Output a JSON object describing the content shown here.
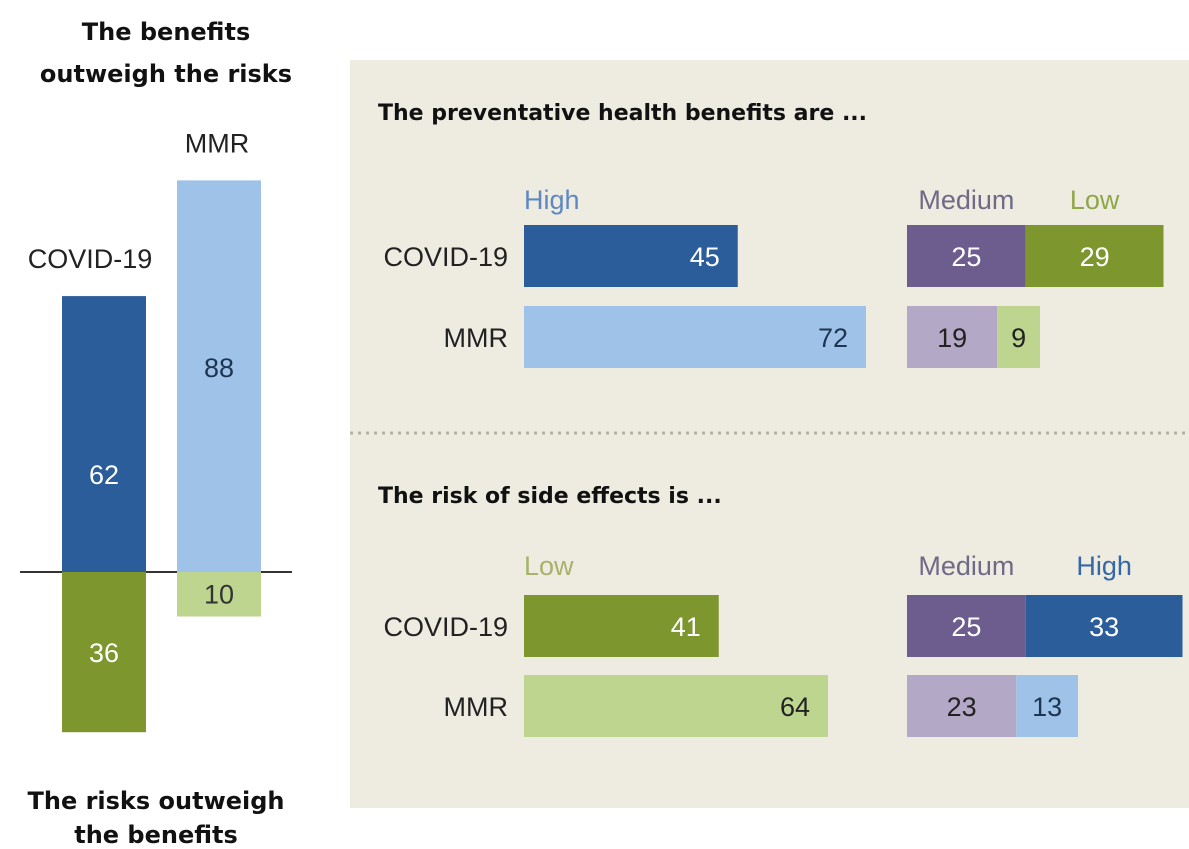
{
  "chart_data": [
    {
      "type": "bar",
      "top_label": [
        "The benefits",
        "outweigh the risks"
      ],
      "bottom_label": [
        "The risks outweigh",
        "the benefits"
      ],
      "categories": [
        "COVID-19",
        "MMR"
      ],
      "series": [
        {
          "name": "The benefits outweigh the risks",
          "values": [
            62,
            88
          ]
        },
        {
          "name": "The risks outweigh the benefits",
          "values": [
            36,
            10
          ]
        }
      ]
    },
    {
      "type": "bar",
      "title": "The preventative health benefits are ...",
      "categories": [
        "COVID-19",
        "MMR"
      ],
      "series": [
        {
          "name": "High",
          "values": [
            45,
            72
          ]
        },
        {
          "name": "Medium",
          "values": [
            25,
            19
          ]
        },
        {
          "name": "Low",
          "values": [
            29,
            9
          ]
        }
      ]
    },
    {
      "type": "bar",
      "title": "The risk of side effects is ...",
      "categories": [
        "COVID-19",
        "MMR"
      ],
      "series": [
        {
          "name": "Low",
          "values": [
            41,
            64
          ]
        },
        {
          "name": "Medium",
          "values": [
            25,
            23
          ]
        },
        {
          "name": "High",
          "values": [
            33,
            13
          ]
        }
      ]
    }
  ],
  "colors": {
    "covid_positive": "#2b5d9b",
    "mmr_positive": "#9ec2e8",
    "covid_negative": "#7d962e",
    "mmr_negative": "#bdd58f",
    "covid_medium": "#6c5d8e",
    "mmr_medium": "#b3a8c6",
    "panel_background": "#eeebe0",
    "divider": "#b5b2a3",
    "benefit_high_legend": "#5f88c2",
    "medium_legend": "#6f6a86",
    "benefit_low_legend": "#8fa748",
    "side_low_legend": "#a7b26a",
    "side_high_legend": "#3467a6"
  }
}
